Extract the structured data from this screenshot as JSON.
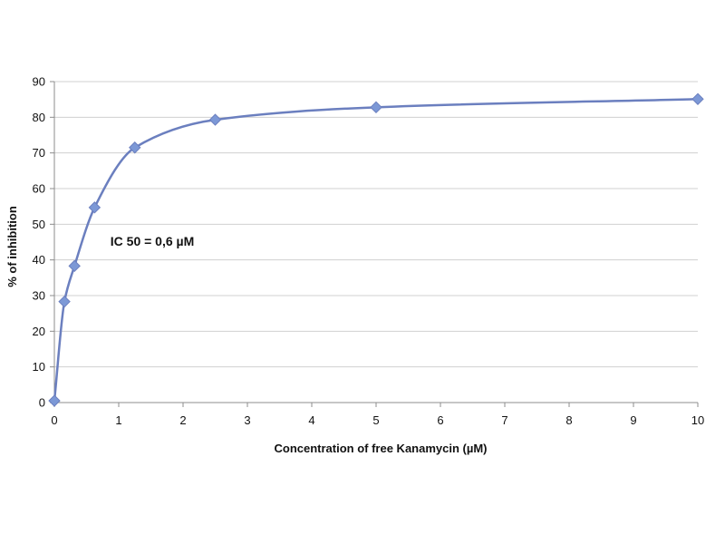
{
  "chart_data": {
    "type": "scatter",
    "xlabel": "Concentration of free Kanamycin (µM)",
    "ylabel": "% of inhibition",
    "xlim": [
      0,
      10
    ],
    "ylim": [
      0,
      90
    ],
    "xticks": [
      0,
      1,
      2,
      3,
      4,
      5,
      6,
      7,
      8,
      9,
      10
    ],
    "yticks": [
      0,
      10,
      20,
      30,
      40,
      50,
      60,
      70,
      80,
      90
    ],
    "grid": "horizontal",
    "series": [
      {
        "x": [
          0,
          0.156,
          0.3125,
          0.625,
          1.25,
          2.5,
          5,
          10
        ],
        "y": [
          0.5,
          28.3,
          38.3,
          54.7,
          71.5,
          79.3,
          82.8,
          85.1
        ],
        "line": "smooth",
        "marker": "diamond"
      }
    ],
    "annotations": [
      {
        "text": "IC 50 = 0,6 µM",
        "x": 0.87,
        "y": 44
      }
    ],
    "colors": {
      "series": "#6b7fbf",
      "marker": "#7c98d6",
      "grid": "#d0d0d0",
      "axis": "#8c8c8c"
    }
  }
}
